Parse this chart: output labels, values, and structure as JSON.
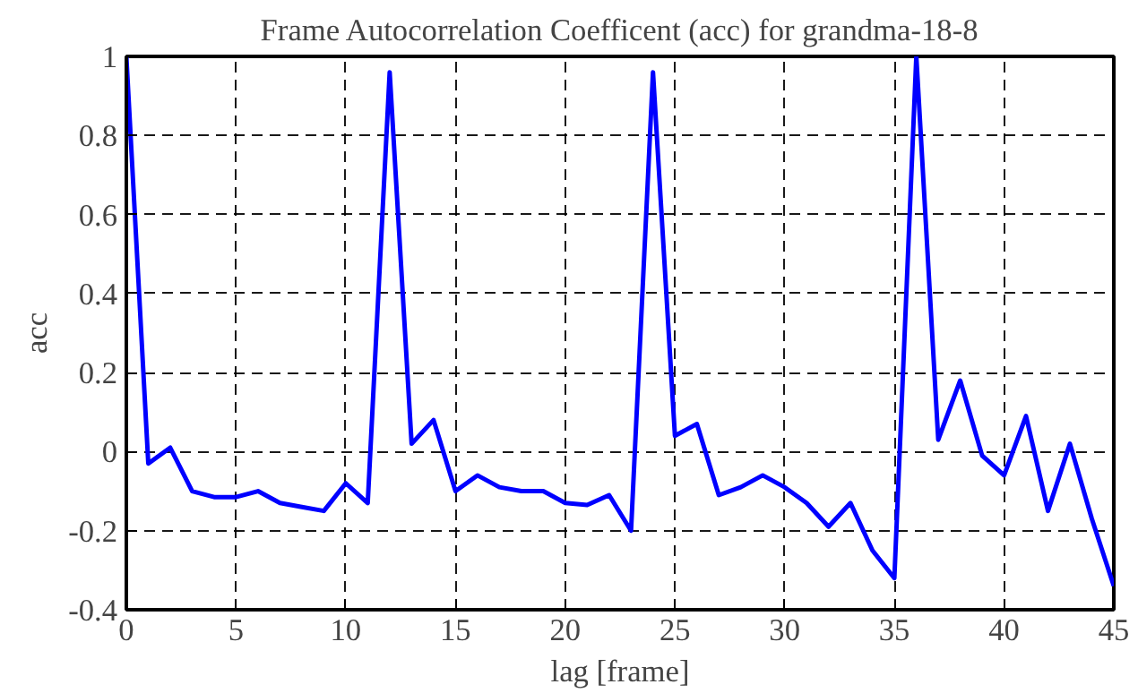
{
  "chart_data": {
    "type": "line",
    "title": "Frame Autocorrelation Coefficent (acc) for grandma-18-8",
    "xlabel": "lag [frame]",
    "ylabel": "acc",
    "x": [
      0,
      1,
      2,
      3,
      4,
      5,
      6,
      7,
      8,
      9,
      10,
      11,
      12,
      13,
      14,
      15,
      16,
      17,
      18,
      19,
      20,
      21,
      22,
      23,
      24,
      25,
      26,
      27,
      28,
      29,
      30,
      31,
      32,
      33,
      34,
      35,
      36,
      37,
      38,
      39,
      40,
      41,
      42,
      43,
      44,
      45
    ],
    "series": [
      {
        "color": "#0000ff",
        "values": [
          1.0,
          -0.03,
          0.01,
          -0.1,
          -0.115,
          -0.115,
          -0.1,
          -0.13,
          -0.14,
          -0.15,
          -0.08,
          -0.13,
          0.96,
          0.02,
          0.08,
          -0.1,
          -0.06,
          -0.09,
          -0.1,
          -0.1,
          -0.13,
          -0.135,
          -0.11,
          -0.2,
          0.96,
          0.04,
          0.07,
          -0.11,
          -0.09,
          -0.06,
          -0.09,
          -0.13,
          -0.19,
          -0.13,
          -0.25,
          -0.32,
          1.0,
          0.03,
          0.18,
          -0.01,
          -0.06,
          0.09,
          -0.15,
          0.02,
          -0.17,
          -0.34
        ]
      }
    ],
    "xlim": [
      0,
      45
    ],
    "ylim": [
      -0.4,
      1
    ],
    "xticks": [
      0,
      5,
      10,
      15,
      20,
      25,
      30,
      35,
      40,
      45
    ],
    "yticks": [
      -0.4,
      -0.2,
      0,
      0.2,
      0.4,
      0.6,
      0.8,
      1
    ],
    "grid": true,
    "line_style": "solid"
  }
}
